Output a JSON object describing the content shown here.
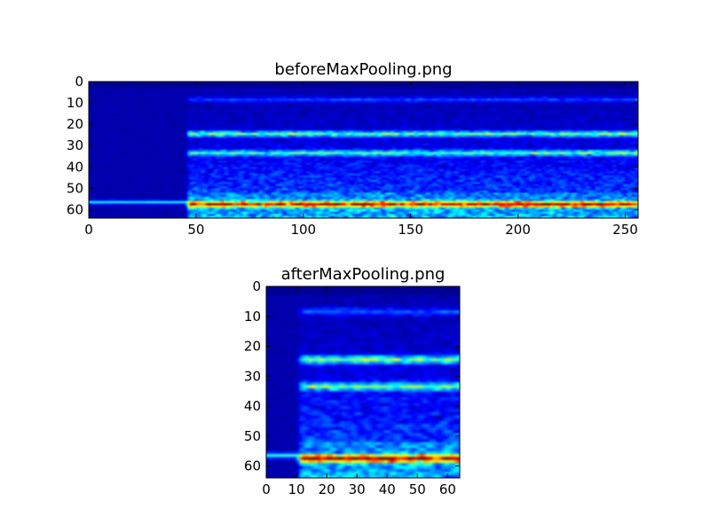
{
  "chart_data": [
    {
      "type": "heatmap",
      "title": "beforeMaxPooling.png",
      "xlabel": "",
      "ylabel": "",
      "xlim": [
        0,
        256
      ],
      "ylim": [
        64,
        0
      ],
      "xticks": [
        0,
        50,
        100,
        150,
        200,
        250
      ],
      "yticks": [
        0,
        10,
        20,
        30,
        40,
        50,
        60
      ],
      "rows": 64,
      "cols": 256,
      "colormap": "jet",
      "value_range": [
        0,
        1
      ],
      "silent_region_cols": [
        0,
        46
      ],
      "pure_bg_rows": [
        0,
        3
      ],
      "bands": [
        {
          "row": 8,
          "intensity": 0.16
        },
        {
          "row": 24,
          "intensity": 0.45
        },
        {
          "row": 33,
          "intensity": 0.38
        },
        {
          "row": 57,
          "intensity": 0.82
        }
      ],
      "silent_band": {
        "row": 56,
        "intensity": 0.32
      }
    },
    {
      "type": "heatmap",
      "title": "afterMaxPooling.png",
      "xlabel": "",
      "ylabel": "",
      "xlim": [
        0,
        64
      ],
      "ylim": [
        64,
        0
      ],
      "xticks": [
        0,
        10,
        20,
        30,
        40,
        50,
        60
      ],
      "yticks": [
        0,
        10,
        20,
        30,
        40,
        50,
        60
      ],
      "rows": 64,
      "cols": 64,
      "colormap": "jet",
      "value_range": [
        0,
        1
      ],
      "silent_region_cols": [
        0,
        11
      ],
      "pure_bg_rows": [
        0,
        3
      ],
      "bands": [
        {
          "row": 8,
          "intensity": 0.18
        },
        {
          "row": 24,
          "intensity": 0.5
        },
        {
          "row": 33,
          "intensity": 0.42
        },
        {
          "row": 57,
          "intensity": 0.88
        }
      ],
      "silent_band": {
        "row": 56,
        "intensity": 0.36
      }
    }
  ]
}
